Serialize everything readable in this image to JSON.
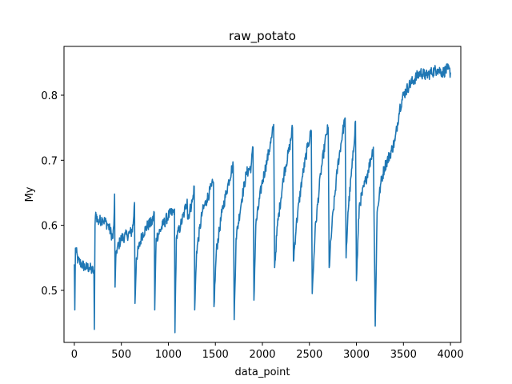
{
  "chart_data": {
    "type": "line",
    "title": "raw_potato",
    "xlabel": "data_point",
    "ylabel": "My",
    "xlim": [
      -110,
      4110
    ],
    "ylim": [
      0.42,
      0.875
    ],
    "xticks": [
      0,
      500,
      1000,
      1500,
      2000,
      2500,
      3000,
      3500,
      4000
    ],
    "yticks": [
      0.5,
      0.6,
      0.7,
      0.8
    ],
    "grid": false,
    "series": [
      {
        "color": "#1f77b4",
        "points": [
          [
            0,
            0.54
          ],
          [
            5,
            0.47
          ],
          [
            12,
            0.565
          ],
          [
            40,
            0.545
          ],
          [
            80,
            0.54
          ],
          [
            120,
            0.535
          ],
          [
            160,
            0.535
          ],
          [
            190,
            0.53
          ],
          [
            208,
            0.53
          ],
          [
            213,
            0.44
          ],
          [
            220,
            0.6
          ],
          [
            228,
            0.62
          ],
          [
            250,
            0.605
          ],
          [
            300,
            0.61
          ],
          [
            360,
            0.6
          ],
          [
            410,
            0.58
          ],
          [
            420,
            0.6
          ],
          [
            428,
            0.648
          ],
          [
            433,
            0.505
          ],
          [
            445,
            0.56
          ],
          [
            500,
            0.58
          ],
          [
            560,
            0.585
          ],
          [
            610,
            0.59
          ],
          [
            625,
            0.6
          ],
          [
            640,
            0.635
          ],
          [
            645,
            0.48
          ],
          [
            660,
            0.55
          ],
          [
            720,
            0.585
          ],
          [
            780,
            0.6
          ],
          [
            830,
            0.605
          ],
          [
            850,
            0.62
          ],
          [
            855,
            0.47
          ],
          [
            870,
            0.58
          ],
          [
            940,
            0.6
          ],
          [
            1000,
            0.615
          ],
          [
            1050,
            0.62
          ],
          [
            1065,
            0.625
          ],
          [
            1070,
            0.435
          ],
          [
            1085,
            0.58
          ],
          [
            1130,
            0.6
          ],
          [
            1170,
            0.62
          ],
          [
            1200,
            0.64
          ],
          [
            1205,
            0.61
          ],
          [
            1260,
            0.64
          ],
          [
            1275,
            0.66
          ],
          [
            1280,
            0.47
          ],
          [
            1300,
            0.56
          ],
          [
            1360,
            0.62
          ],
          [
            1410,
            0.64
          ],
          [
            1460,
            0.66
          ],
          [
            1480,
            0.665
          ],
          [
            1485,
            0.475
          ],
          [
            1510,
            0.56
          ],
          [
            1570,
            0.62
          ],
          [
            1630,
            0.66
          ],
          [
            1680,
            0.69
          ],
          [
            1690,
            0.69
          ],
          [
            1700,
            0.455
          ],
          [
            1720,
            0.58
          ],
          [
            1780,
            0.64
          ],
          [
            1830,
            0.68
          ],
          [
            1880,
            0.69
          ],
          [
            1900,
            0.72
          ],
          [
            1910,
            0.485
          ],
          [
            1930,
            0.6
          ],
          [
            1990,
            0.66
          ],
          [
            2050,
            0.7
          ],
          [
            2100,
            0.735
          ],
          [
            2120,
            0.755
          ],
          [
            2130,
            0.535
          ],
          [
            2160,
            0.6
          ],
          [
            2230,
            0.68
          ],
          [
            2290,
            0.72
          ],
          [
            2320,
            0.75
          ],
          [
            2330,
            0.545
          ],
          [
            2360,
            0.6
          ],
          [
            2420,
            0.67
          ],
          [
            2480,
            0.72
          ],
          [
            2520,
            0.745
          ],
          [
            2530,
            0.495
          ],
          [
            2560,
            0.59
          ],
          [
            2620,
            0.68
          ],
          [
            2680,
            0.74
          ],
          [
            2700,
            0.75
          ],
          [
            2710,
            0.535
          ],
          [
            2740,
            0.6
          ],
          [
            2800,
            0.69
          ],
          [
            2850,
            0.74
          ],
          [
            2880,
            0.765
          ],
          [
            2890,
            0.55
          ],
          [
            2910,
            0.62
          ],
          [
            2960,
            0.7
          ],
          [
            2990,
            0.76
          ],
          [
            3000,
            0.515
          ],
          [
            3030,
            0.63
          ],
          [
            3100,
            0.67
          ],
          [
            3150,
            0.7
          ],
          [
            3180,
            0.72
          ],
          [
            3200,
            0.445
          ],
          [
            3220,
            0.62
          ],
          [
            3260,
            0.665
          ],
          [
            3300,
            0.69
          ],
          [
            3360,
            0.71
          ],
          [
            3410,
            0.73
          ],
          [
            3460,
            0.78
          ],
          [
            3500,
            0.8
          ],
          [
            3560,
            0.815
          ],
          [
            3620,
            0.825
          ],
          [
            3680,
            0.835
          ],
          [
            3740,
            0.83
          ],
          [
            3800,
            0.835
          ],
          [
            3860,
            0.84
          ],
          [
            3920,
            0.835
          ],
          [
            3970,
            0.84
          ],
          [
            4000,
            0.835
          ]
        ]
      }
    ]
  }
}
